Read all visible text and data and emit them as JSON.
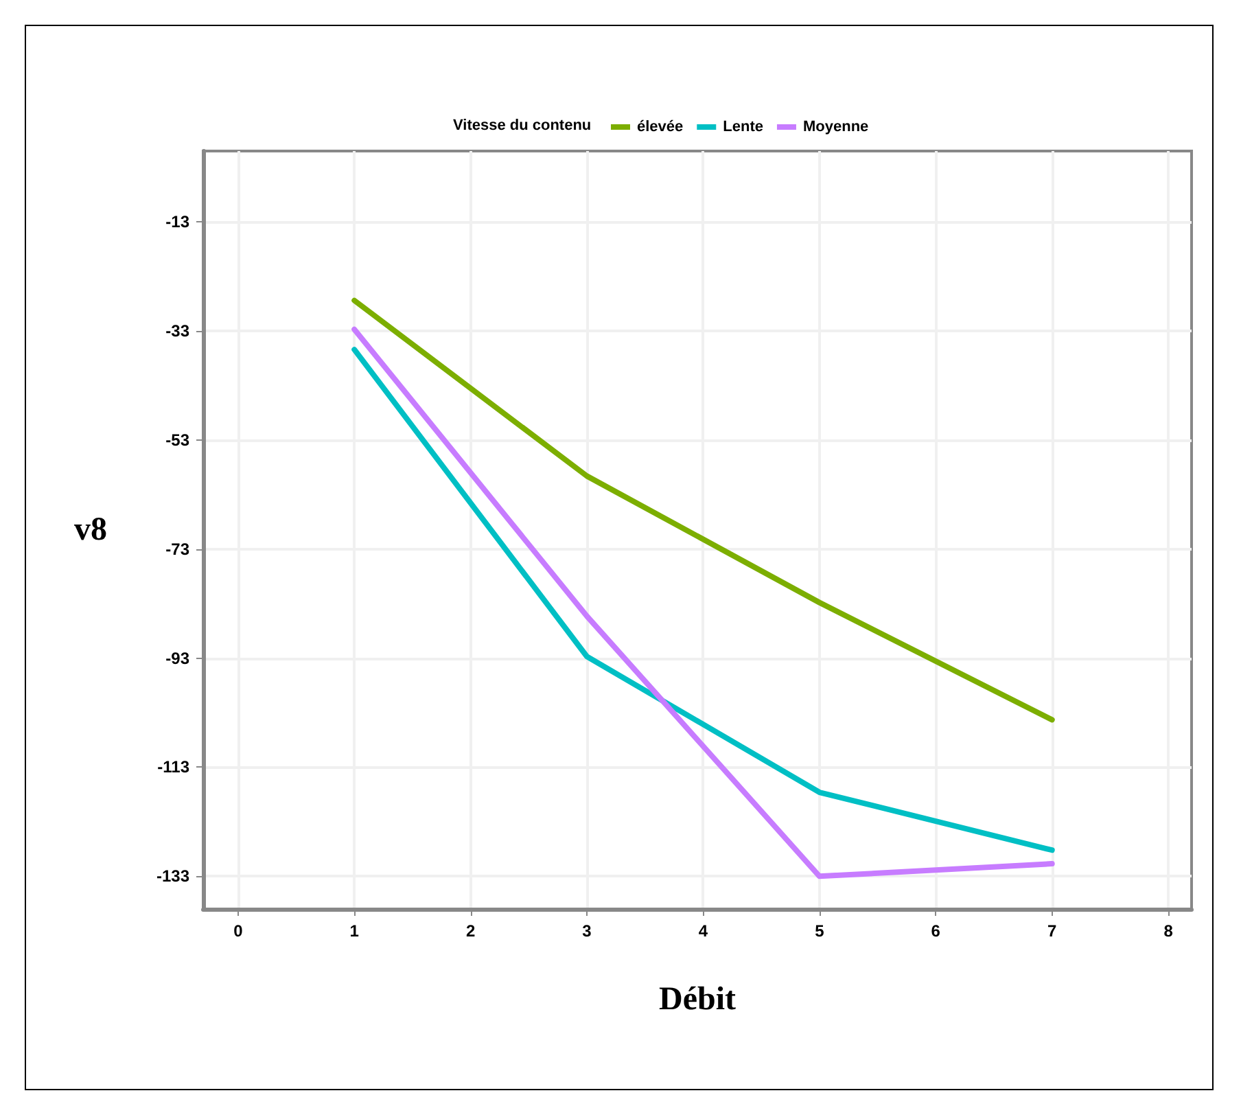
{
  "chart_data": {
    "type": "line",
    "xlabel": "Débit",
    "ylabel": "v8",
    "legend_title": "Vitesse du contenu",
    "x": [
      1,
      3,
      5,
      7
    ],
    "series": [
      {
        "name": "élevée",
        "color": "#7cae00",
        "values": [
          -27.4,
          -59.6,
          -82.8,
          -104.3
        ]
      },
      {
        "name": "Lente",
        "color": "#00bfc4",
        "values": [
          -36.4,
          -92.7,
          -117.6,
          -128.2
        ]
      },
      {
        "name": "Moyenne",
        "color": "#c77cff",
        "values": [
          -32.7,
          -85.3,
          -133,
          -130.7
        ]
      }
    ],
    "xlim": [
      -0.3,
      8.2
    ],
    "xticks": [
      0,
      1,
      2,
      3,
      4,
      5,
      6,
      7,
      8
    ],
    "ylim": [
      -139,
      0
    ],
    "yticks": [
      -133,
      -113,
      -93,
      -73,
      -53,
      -33,
      -13
    ],
    "grid": true,
    "legend": "top",
    "marker": "none",
    "line_style": "solid"
  }
}
